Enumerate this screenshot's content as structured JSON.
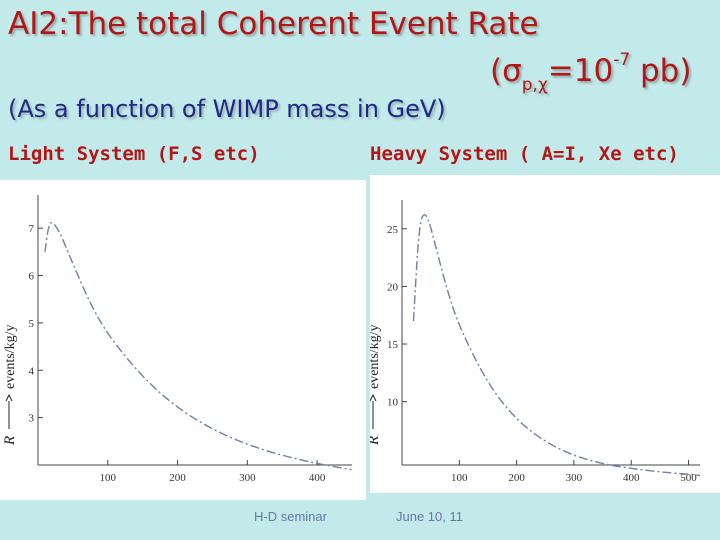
{
  "slide": {
    "title_line1": "AI2:The total Coherent  Event Rate",
    "title_line2_open": "(σ",
    "title_line2_sub": "p,χ",
    "title_line2_mid": "=10",
    "title_line2_sup": "-7",
    "title_line2_close": " pb)",
    "subtitle": "(As a function of  WIMP mass in GeV)",
    "left_label": "Light System (F,S etc)",
    "right_label": "Heavy System ( A=I, Xe etc)",
    "footer_left": "H-D seminar",
    "footer_right": "June 10, 11"
  },
  "colors": {
    "background": "#c3eaea",
    "title": "#b31616",
    "subtitle": "#1e2a86",
    "curve": "#6f7fa8"
  },
  "chart_data": [
    {
      "type": "line",
      "title": "Light System (F,S etc)",
      "xlabel": "",
      "ylabel": "R ⟶ events/kg/y",
      "ylabel_axis": "R",
      "ylabel_unit": "events/kg/y",
      "xlim": [
        0,
        450
      ],
      "ylim": [
        2.0,
        7.7
      ],
      "x_ticks": [
        100,
        200,
        300,
        400
      ],
      "y_ticks": [
        3,
        4,
        5,
        6,
        7
      ],
      "x": [
        10,
        15,
        20,
        30,
        40,
        50,
        75,
        100,
        150,
        200,
        250,
        300,
        350,
        400,
        450
      ],
      "values": [
        6.5,
        7.05,
        7.15,
        6.95,
        6.6,
        6.25,
        5.4,
        4.75,
        3.85,
        3.2,
        2.75,
        2.43,
        2.2,
        2.03,
        1.9
      ]
    },
    {
      "type": "line",
      "title": "Heavy System ( A=I, Xe etc)",
      "xlabel": "",
      "ylabel": "R ⟶ events/kg/y",
      "ylabel_axis": "R",
      "ylabel_unit": "events/kg/y",
      "xlim": [
        0,
        520
      ],
      "ylim": [
        4.5,
        27.5
      ],
      "x_ticks": [
        100,
        200,
        300,
        400,
        500
      ],
      "y_ticks": [
        10,
        15,
        20,
        25
      ],
      "x": [
        20,
        30,
        40,
        50,
        60,
        80,
        100,
        150,
        200,
        250,
        300,
        350,
        400,
        450,
        500,
        520
      ],
      "values": [
        17,
        25.5,
        26.5,
        25.2,
        23.2,
        19.5,
        16.5,
        11.5,
        8.4,
        6.5,
        5.3,
        4.6,
        4.2,
        3.9,
        3.7,
        3.6
      ]
    }
  ]
}
